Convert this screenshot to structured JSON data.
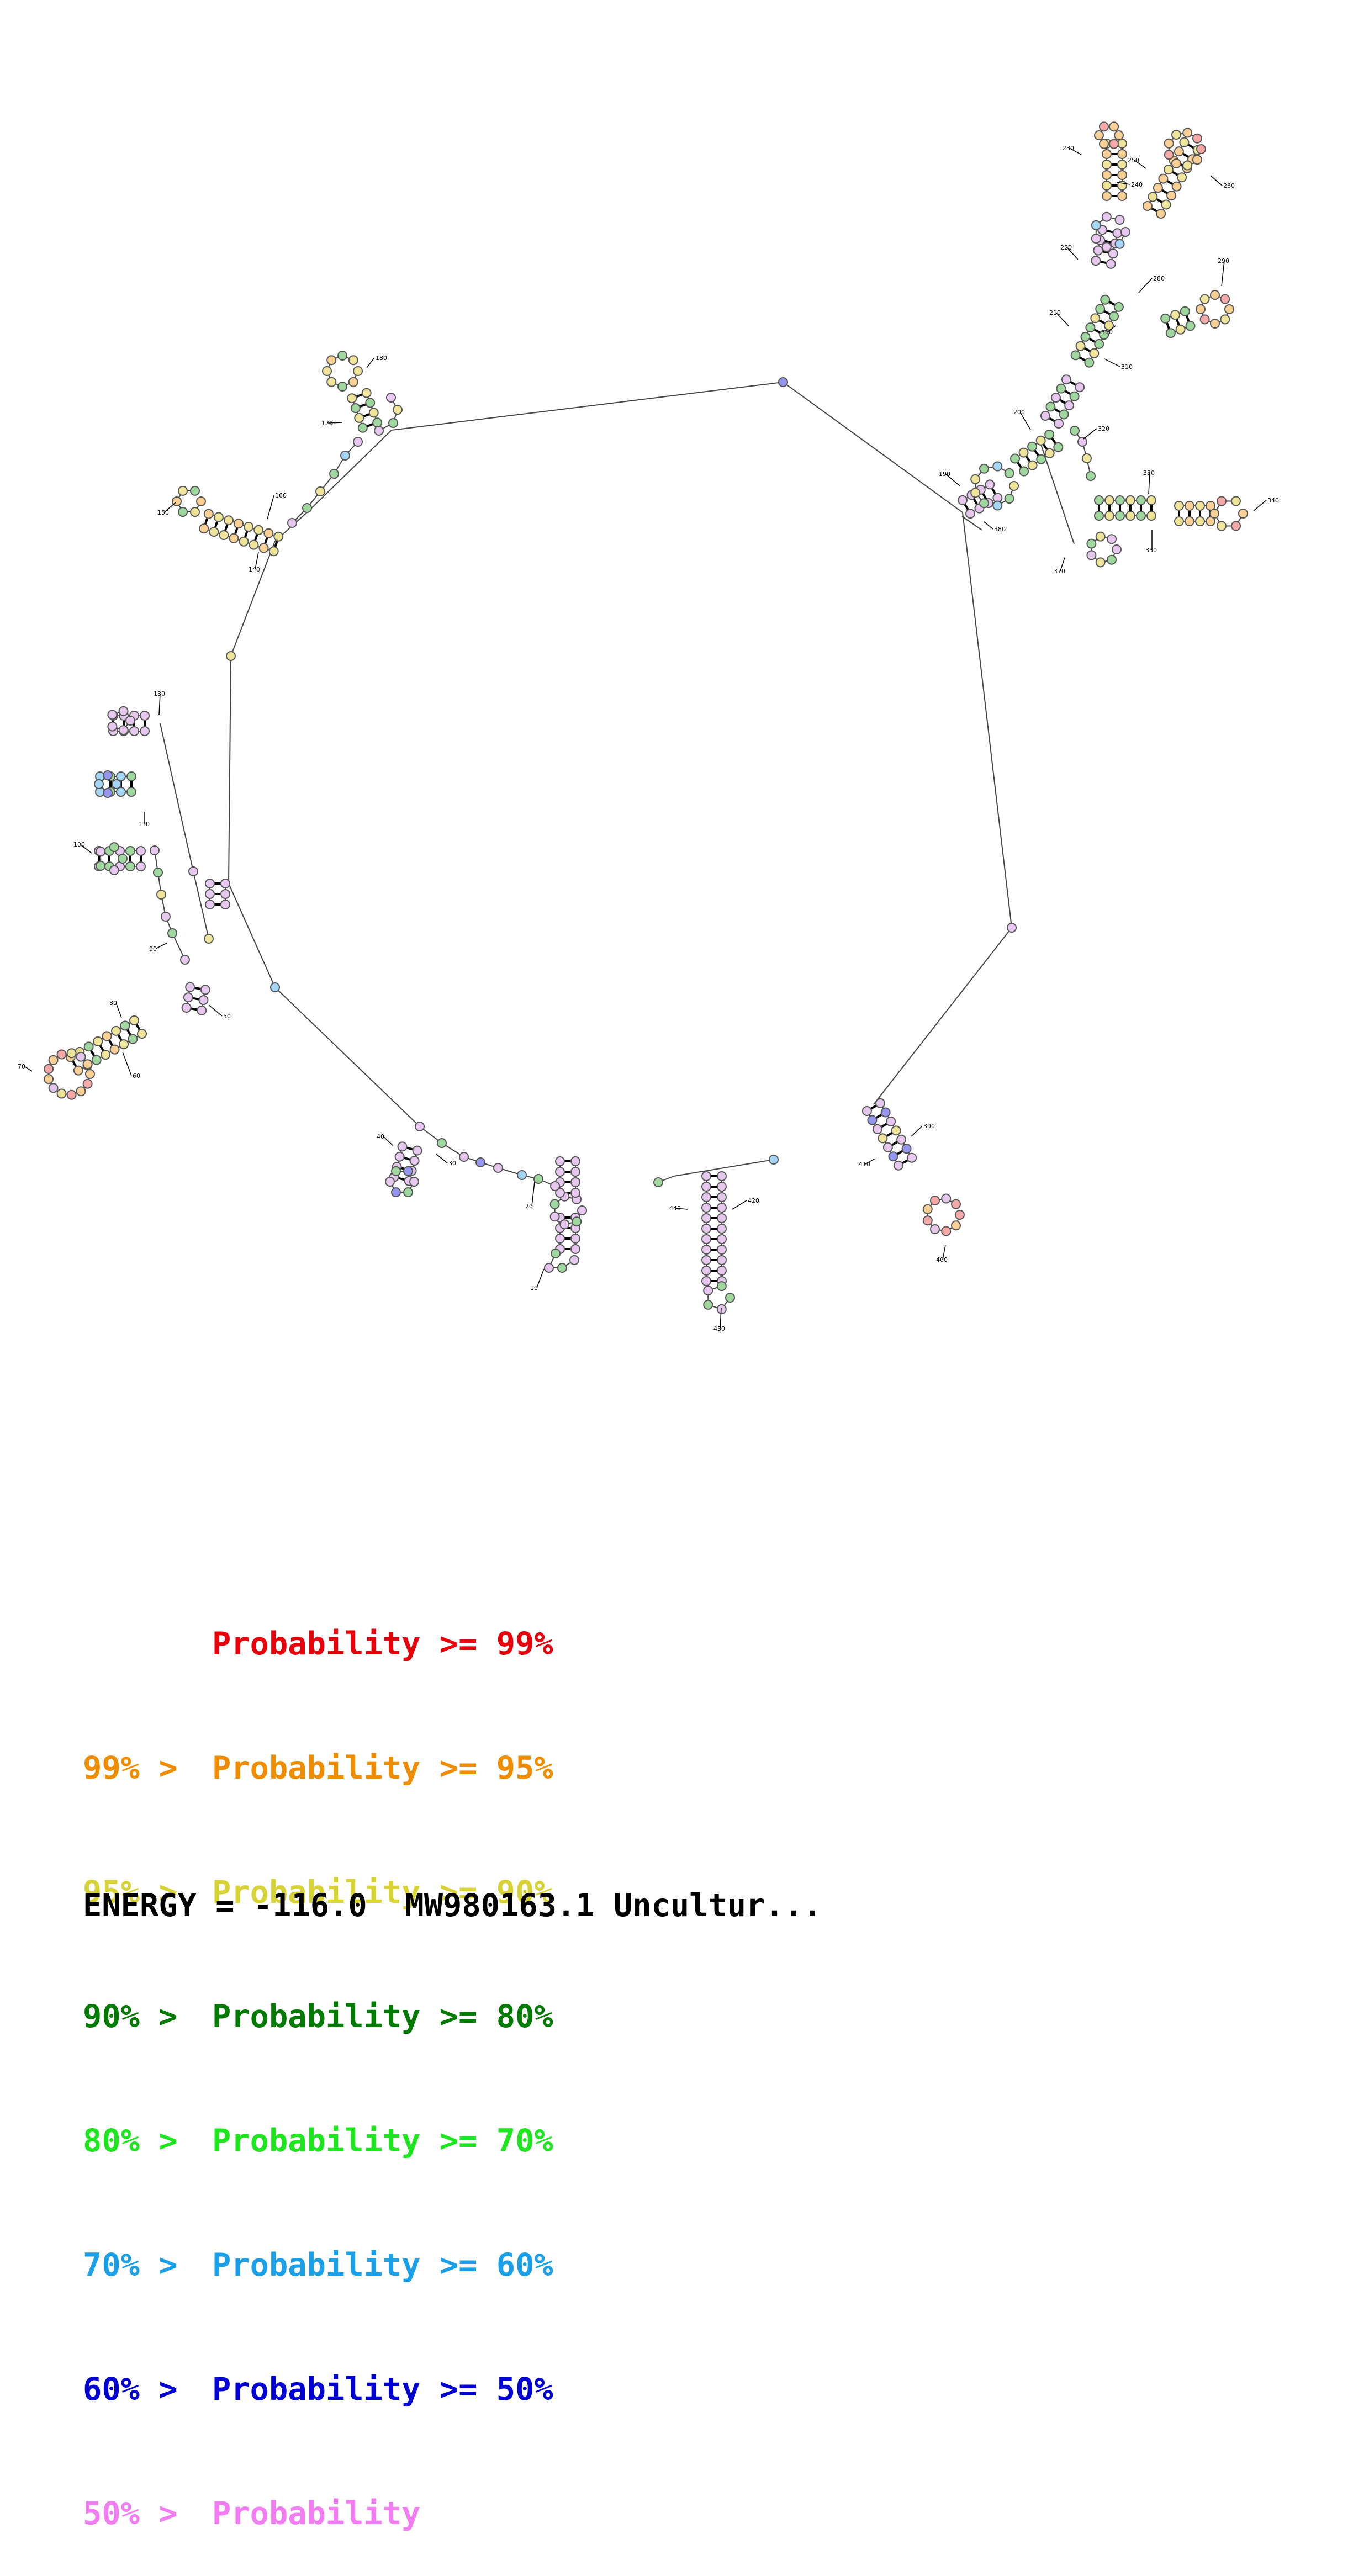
{
  "legend": {
    "rows": [
      {
        "prefix": "",
        "label": "Probability",
        "suffix": ">= 99%",
        "color": "#e8000b"
      },
      {
        "prefix": "99% >",
        "label": "Probability",
        "suffix": ">= 95%",
        "color": "#f08c00"
      },
      {
        "prefix": "95% >",
        "label": "Probability",
        "suffix": ">= 90%",
        "color": "#d7d235"
      },
      {
        "prefix": "90% >",
        "label": "Probability",
        "suffix": ">= 80%",
        "color": "#007a00"
      },
      {
        "prefix": "80% >",
        "label": "Probability",
        "suffix": ">= 70%",
        "color": "#1ee61e"
      },
      {
        "prefix": "70% >",
        "label": "Probability",
        "suffix": ">= 60%",
        "color": "#1aa0e8"
      },
      {
        "prefix": "60% >",
        "label": "Probability",
        "suffix": ">= 50%",
        "color": "#0000d2"
      },
      {
        "prefix": "50% >",
        "label": "Probability",
        "suffix": "",
        "color": "#f27cf2"
      }
    ]
  },
  "energy_line": "ENERGY = -116.0  MW980163.1 Uncultur...",
  "structure": {
    "nucleotide_fill_colors": {
      "p99": "#f5a8a8",
      "p95": "#f8cf95",
      "p90": "#eee49a",
      "p80": "#9fd79f",
      "p70": "#b8f2b0",
      "p60": "#a5d5f5",
      "p50": "#9595ee",
      "p_low": "#e6c8ef"
    },
    "position_labels": [
      "10",
      "20",
      "30",
      "40",
      "50",
      "60",
      "70",
      "80",
      "90",
      "100",
      "110",
      "130",
      "140",
      "150",
      "160",
      "170",
      "180",
      "190",
      "200",
      "210",
      "220",
      "230",
      "240",
      "250",
      "260",
      "280",
      "290",
      "300",
      "310",
      "320",
      "330",
      "340",
      "350",
      "370",
      "380",
      "390",
      "400",
      "410",
      "420",
      "430",
      "440"
    ]
  }
}
